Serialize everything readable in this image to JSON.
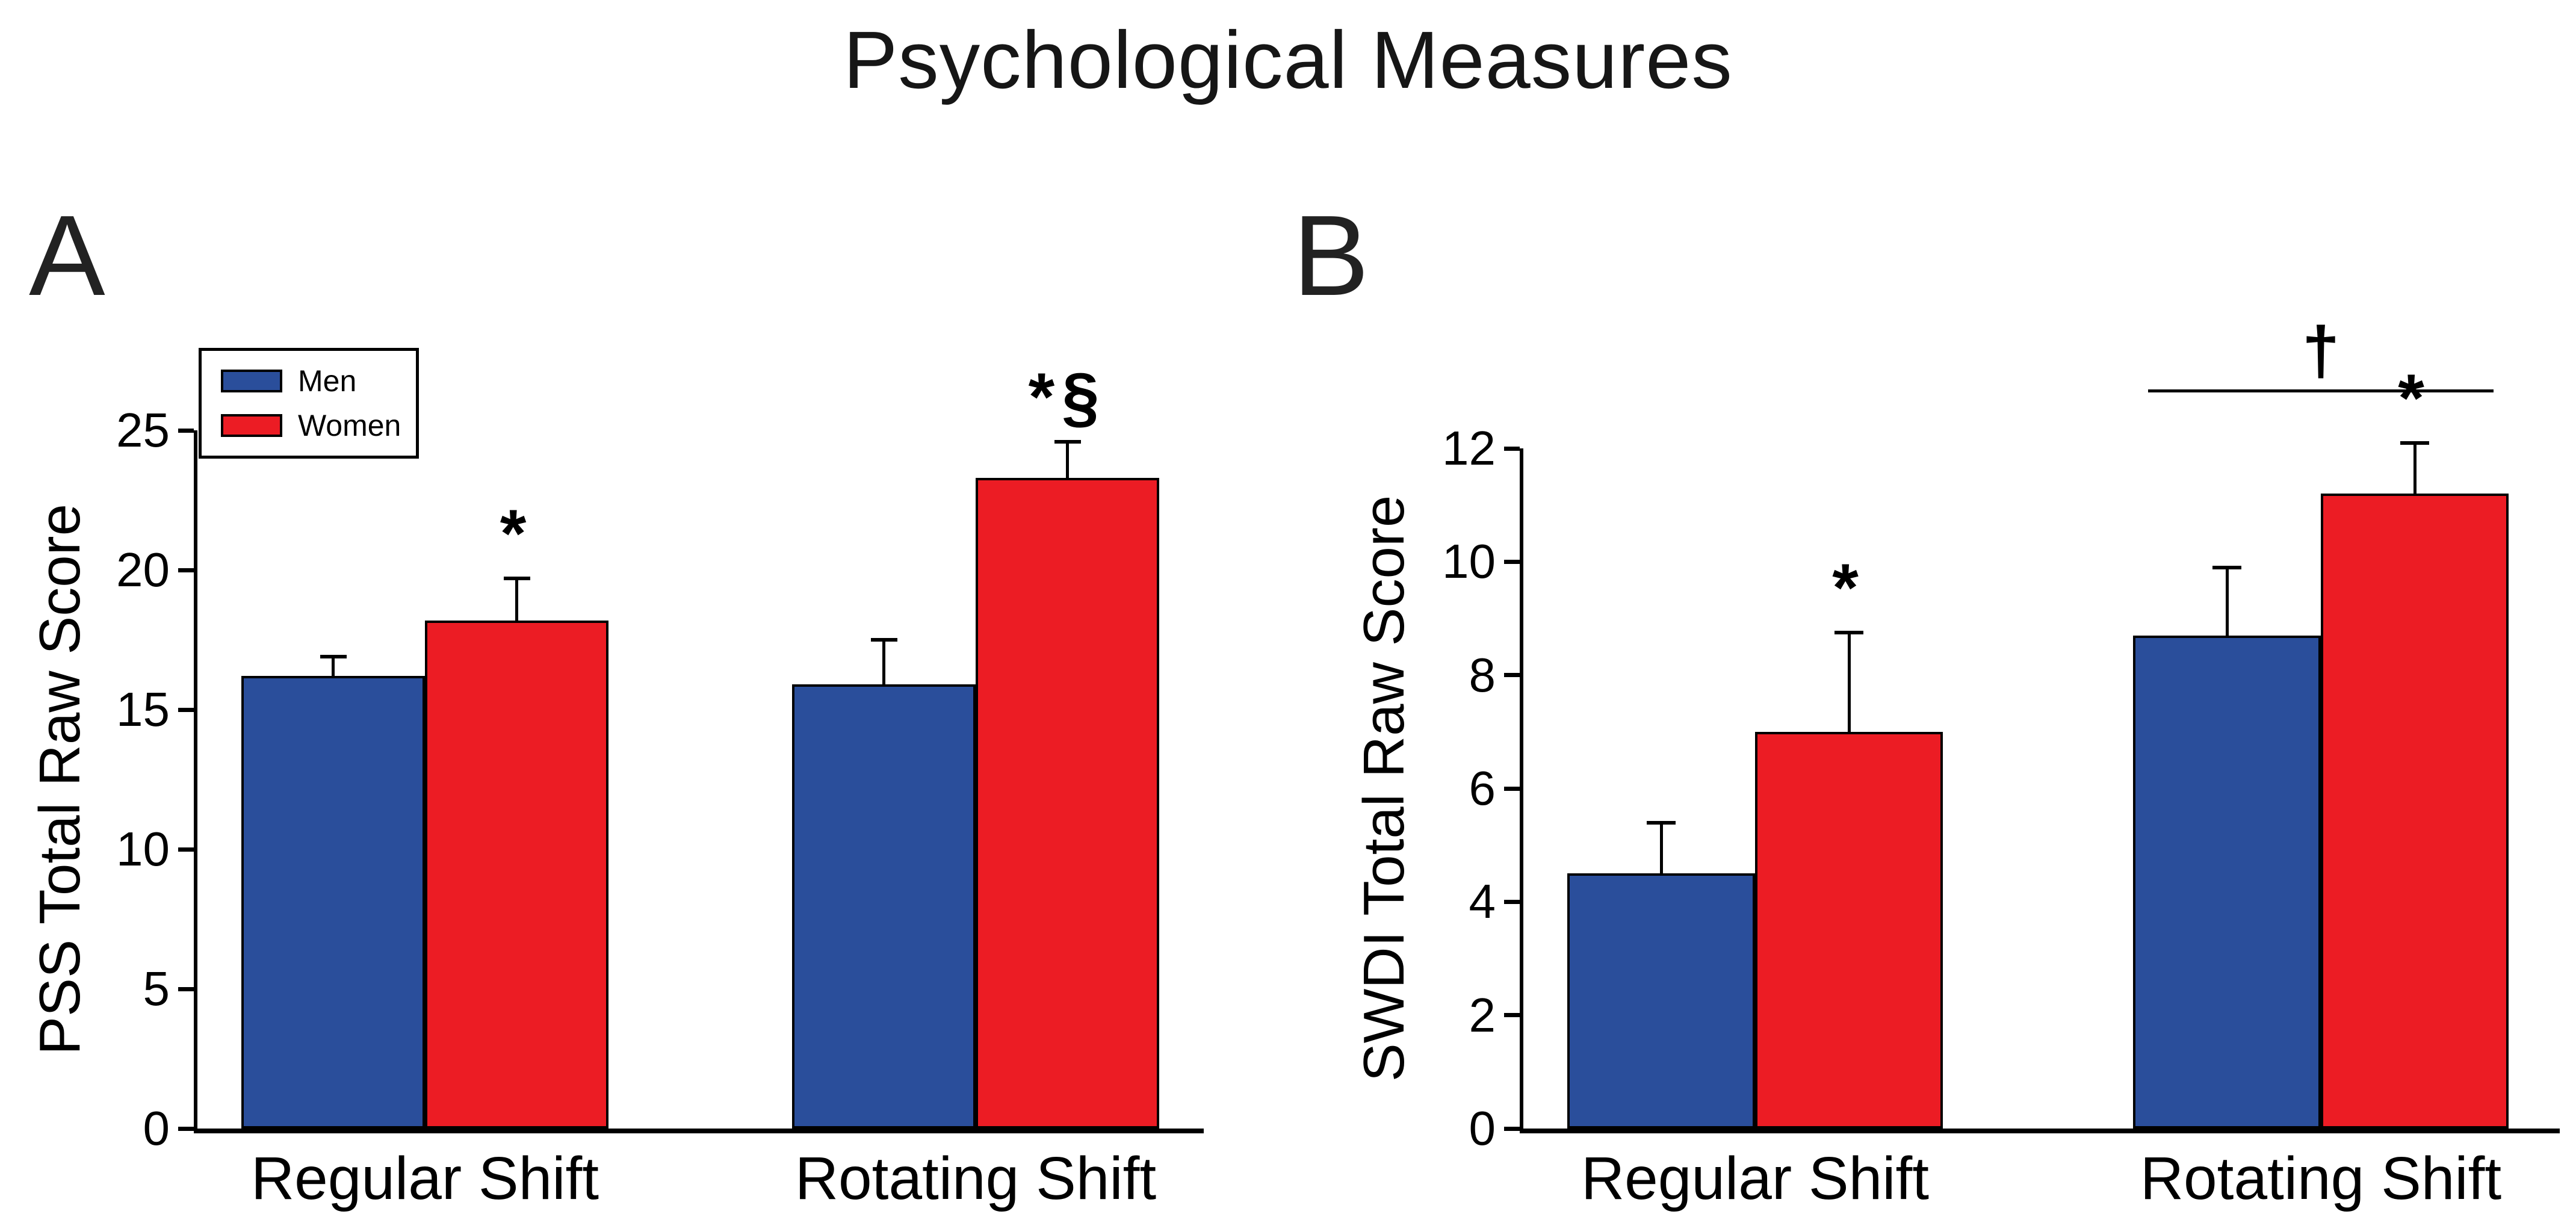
{
  "figure_title": "Psychological Measures",
  "colors": {
    "men_bar": "#2A4E9B",
    "women_bar": "#EC1C24",
    "axis": "#000000",
    "text": "#000000",
    "background": "#FFFFFF"
  },
  "legend": {
    "items": [
      {
        "label": "Men",
        "color_key": "men_bar"
      },
      {
        "label": "Women",
        "color_key": "women_bar"
      }
    ]
  },
  "chart_data": [
    {
      "type": "bar",
      "panel_label": "A",
      "ylabel": "PSS Total Raw Score",
      "xlabel": "",
      "categories": [
        "Regular Shift",
        "Rotating Shift"
      ],
      "series": [
        {
          "name": "Men",
          "values": [
            16.2,
            15.9
          ],
          "errors_up": [
            0.7,
            1.6
          ]
        },
        {
          "name": "Women",
          "values": [
            18.2,
            23.3
          ],
          "errors_up": [
            1.5,
            1.3
          ]
        }
      ],
      "yticks": [
        0,
        5,
        10,
        15,
        20,
        25
      ],
      "ylim": [
        0,
        25
      ],
      "grid": false,
      "legend_position": "upper-left",
      "annotations": [
        {
          "symbol": "*",
          "category_index": 0,
          "series_name": "Women"
        },
        {
          "symbol": "*§",
          "category_index": 1,
          "series_name": "Women"
        }
      ]
    },
    {
      "type": "bar",
      "panel_label": "B",
      "ylabel": "SWDI Total Raw Score",
      "xlabel": "",
      "categories": [
        "Regular Shift",
        "Rotating Shift"
      ],
      "series": [
        {
          "name": "Men",
          "values": [
            4.5,
            8.7
          ],
          "errors_up": [
            0.9,
            1.2
          ]
        },
        {
          "name": "Women",
          "values": [
            7.0,
            11.2
          ],
          "errors_up": [
            1.75,
            0.9
          ]
        }
      ],
      "yticks": [
        0,
        2,
        4,
        6,
        8,
        10,
        12
      ],
      "ylim": [
        0,
        12
      ],
      "grid": false,
      "annotations": [
        {
          "symbol": "*",
          "category_index": 0,
          "series_name": "Women"
        },
        {
          "symbol": "*",
          "category_index": 1,
          "series_name": "Women"
        }
      ],
      "bracket": {
        "symbol": "†",
        "category_index": 1
      }
    }
  ]
}
